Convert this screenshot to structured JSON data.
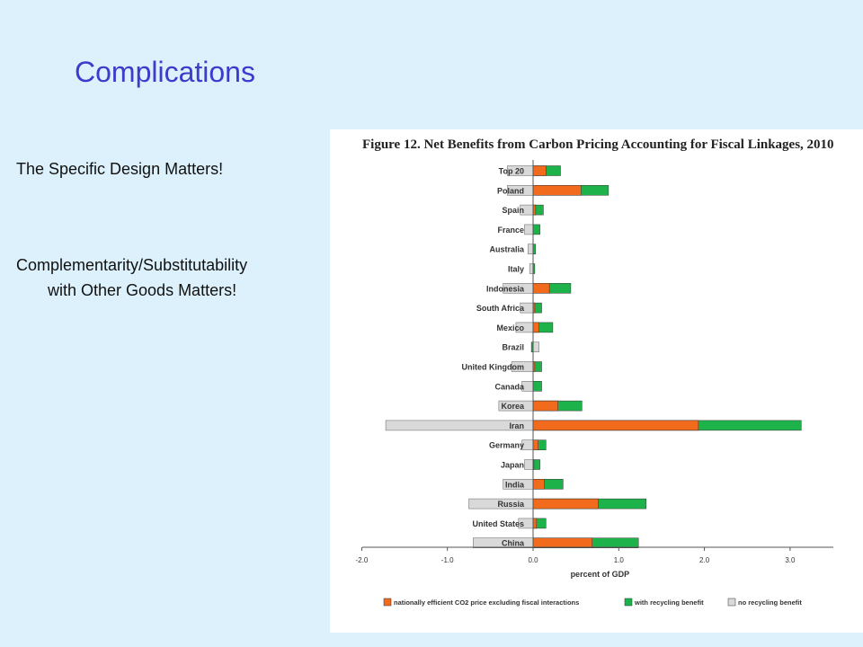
{
  "slide": {
    "title": "Complications",
    "bullet1": "The Specific Design Matters!",
    "bullet2_line1": "Complementarity/Substitutability",
    "bullet2_line2": "with Other Goods Matters!"
  },
  "colors": {
    "background": "#dcf1fb",
    "title": "#3b3bcc",
    "orange": "#f26b1d",
    "green": "#1db34a",
    "gray": "#d9d9d9"
  },
  "chart_data": {
    "type": "bar",
    "orientation": "horizontal",
    "title": "Figure 12. Net Benefits from Carbon Pricing Accounting for Fiscal Linkages, 2010",
    "xlabel": "percent of GDP",
    "xlim": [
      -2.0,
      3.5
    ],
    "xticks": [
      "-2.0",
      "-1.0",
      "0.0",
      "1.0",
      "2.0",
      "3.0"
    ],
    "xtick_values": [
      -2.0,
      -1.0,
      0.0,
      1.0,
      2.0,
      3.0
    ],
    "legend_position": "bottom",
    "categories": [
      "Top 20",
      "Poland",
      "Spain",
      "France",
      "Australia",
      "Italy",
      "Indonesia",
      "South Africa",
      "Mexico",
      "Brazil",
      "United Kingdom",
      "Canada",
      "Korea",
      "Iran",
      "Germany",
      "Japan",
      "India",
      "Russia",
      "United States",
      "China"
    ],
    "series": [
      {
        "name": "nationally efficient CO2 price excluding fiscal interactions",
        "color": "#f26b1d",
        "values": [
          0.15,
          0.56,
          0.03,
          0.0,
          0.0,
          0.0,
          0.19,
          0.02,
          0.07,
          0.0,
          0.02,
          0.0,
          0.29,
          1.93,
          0.06,
          0.01,
          0.13,
          0.76,
          0.04,
          0.69
        ]
      },
      {
        "name": "with recycling benefit",
        "color": "#1db34a",
        "values": [
          0.32,
          0.88,
          0.12,
          0.08,
          0.03,
          0.02,
          0.44,
          0.1,
          0.23,
          -0.02,
          0.1,
          0.1,
          0.57,
          3.13,
          0.15,
          0.08,
          0.35,
          1.32,
          0.15,
          1.23
        ]
      },
      {
        "name": "no recycling benefit",
        "color": "#d9d9d9",
        "values": [
          -0.3,
          -0.3,
          -0.15,
          -0.1,
          -0.06,
          -0.04,
          -0.35,
          -0.15,
          -0.2,
          0.07,
          -0.25,
          -0.13,
          -0.4,
          -1.72,
          -0.13,
          -0.1,
          -0.35,
          -0.75,
          -0.17,
          -0.7
        ]
      }
    ]
  }
}
